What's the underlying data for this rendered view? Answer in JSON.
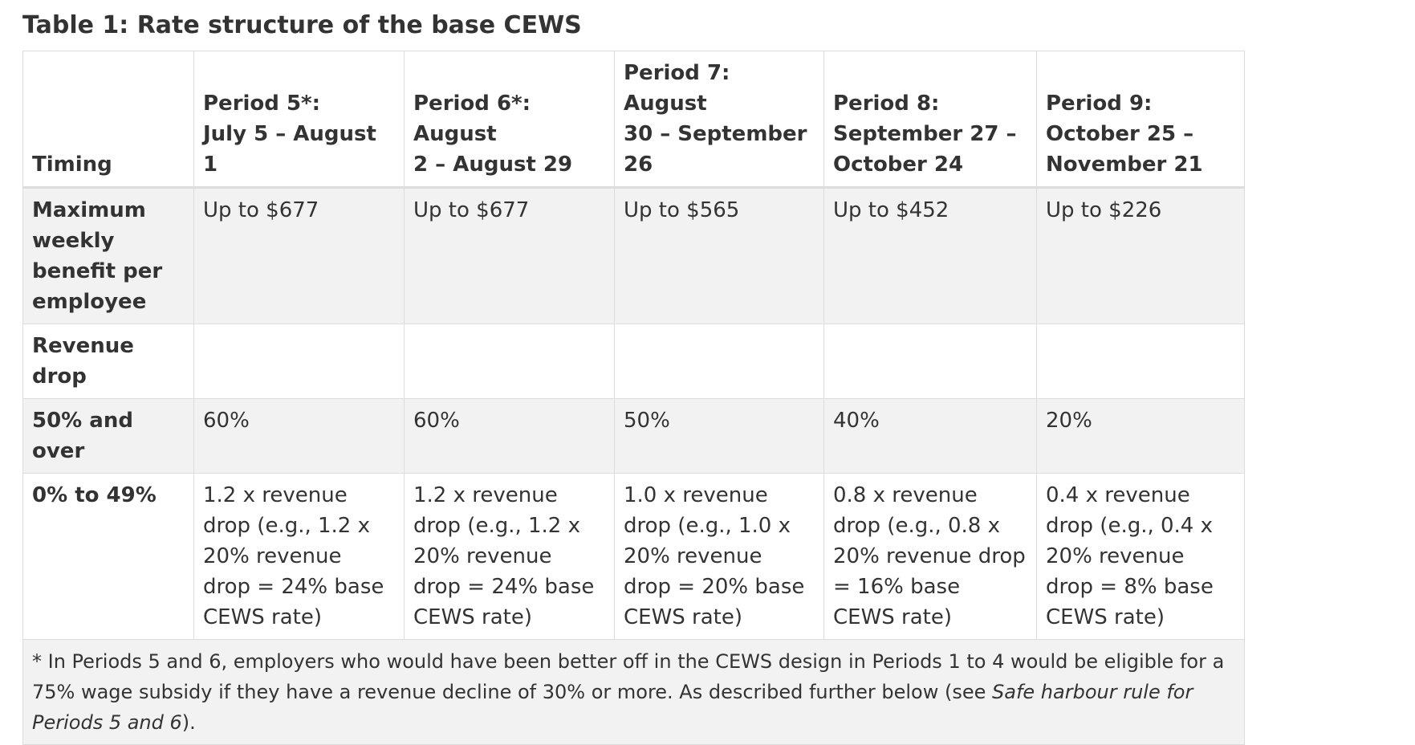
{
  "caption": "Table 1: Rate structure of the base CEWS",
  "table": {
    "header": {
      "timing": "Timing",
      "periods": [
        {
          "name": "Period 5*:",
          "dates": "July 5 – August 1"
        },
        {
          "name": "Period 6*: August",
          "dates": "2 – August 29"
        },
        {
          "name": "Period 7: August",
          "dates": "30 – September 26"
        },
        {
          "name": "Period 8:",
          "dates": "September 27 – October 24"
        },
        {
          "name": "Period 9:",
          "dates": "October 25 – November 21"
        }
      ]
    },
    "rows": {
      "max_benefit": {
        "label": "Maximum weekly benefit per employee",
        "values": [
          "Up to $677",
          "Up to $677",
          "Up to $565",
          "Up to $452",
          "Up to $226"
        ]
      },
      "revenue_drop": {
        "label": "Revenue drop"
      },
      "fifty_and_over": {
        "label": "50% and over",
        "values": [
          "60%",
          "60%",
          "50%",
          "40%",
          "20%"
        ]
      },
      "zero_to_49": {
        "label": "0% to 49%",
        "values": [
          "1.2 x revenue drop (e.g., 1.2 x 20% revenue drop = 24% base CEWS rate)",
          "1.2 x revenue drop (e.g., 1.2 x 20% revenue drop = 24% base CEWS rate)",
          "1.0 x revenue drop (e.g., 1.0 x 20% revenue drop = 20% base CEWS rate)",
          "0.8 x revenue drop (e.g., 0.8 x 20% revenue drop  = 16% base CEWS rate)",
          "0.4 x revenue drop (e.g., 0.4 x 20% revenue drop = 8% base CEWS rate)"
        ]
      }
    },
    "footnote": {
      "text": "* In Periods 5 and 6, employers who would have been better off in the CEWS design in Periods 1 to 4 would be eligible for a 75% wage subsidy if they have a revenue decline of 30% or more. As described further below (see ",
      "emphasis": "Safe harbour rule for Periods 5 and 6",
      "end": ")."
    }
  }
}
